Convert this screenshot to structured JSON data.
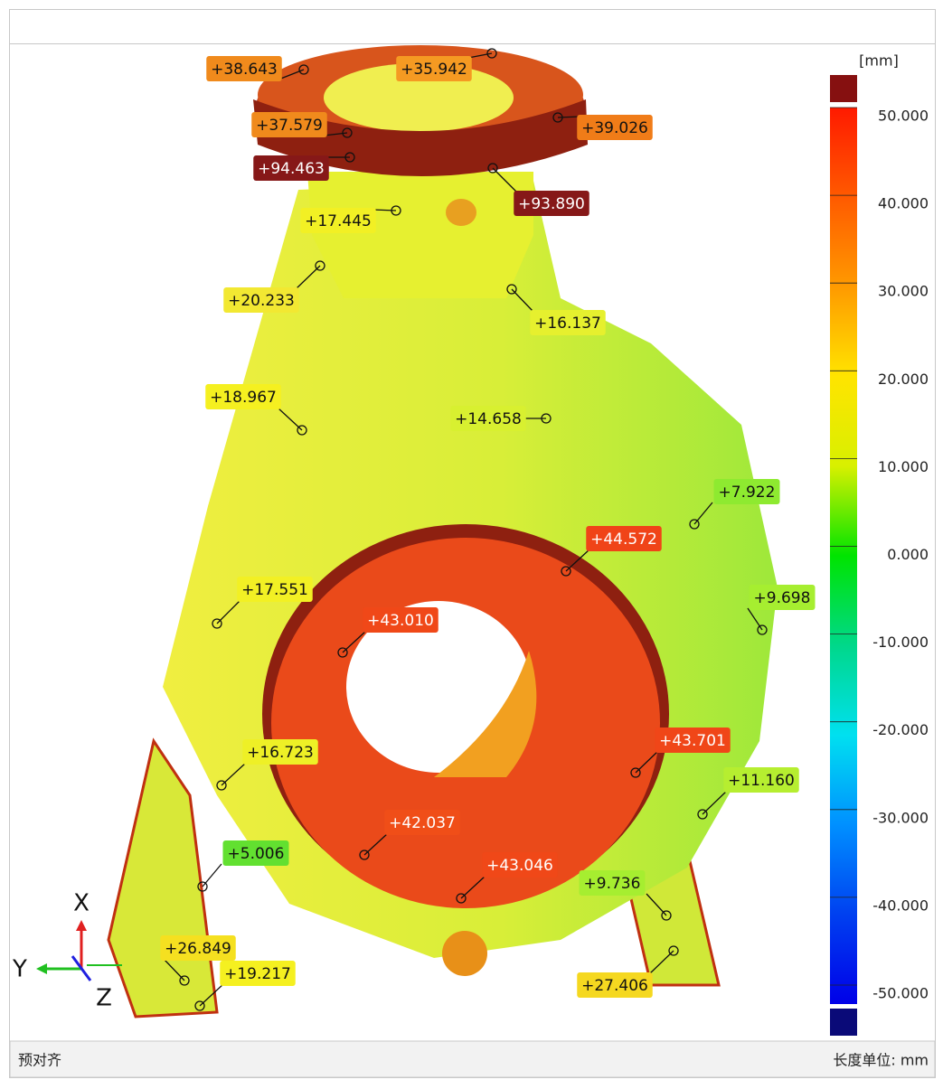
{
  "viewer": {
    "status_left": "预对齐",
    "status_right": "长度单位: mm",
    "colorbar": {
      "unit": "[mm]",
      "ticks": [
        "50.000",
        "40.000",
        "30.000",
        "20.000",
        "10.000",
        "0.000",
        "-10.000",
        "-20.000",
        "-30.000",
        "-40.000",
        "-50.000"
      ]
    },
    "axes": {
      "x": "X",
      "y": "Y",
      "z": "Z"
    },
    "callouts": [
      {
        "label": "+38.643",
        "color": "#f08a1c"
      },
      {
        "label": "+35.942",
        "color": "#f59a22"
      },
      {
        "label": "+37.579",
        "color": "#f08a1c"
      },
      {
        "label": "+39.026",
        "color": "#f07c18"
      },
      {
        "label": "+94.463",
        "color": "#861818"
      },
      {
        "label": "+93.890",
        "color": "#861818"
      },
      {
        "label": "+17.445",
        "color": "#f2f024"
      },
      {
        "label": "+20.233",
        "color": "#f2e832"
      },
      {
        "label": "+16.137",
        "color": "#e6f02e"
      },
      {
        "label": "+18.967",
        "color": "#f5f020"
      },
      {
        "label": "+14.658",
        "color": "#d8f030"
      },
      {
        "label": "+7.922",
        "color": "#8eea30"
      },
      {
        "label": "+44.572",
        "color": "#f04418"
      },
      {
        "label": "+17.551",
        "color": "#f2f024"
      },
      {
        "label": "+9.698",
        "color": "#a6ee30"
      },
      {
        "label": "+43.010",
        "color": "#f04818"
      },
      {
        "label": "+43.701",
        "color": "#f04618"
      },
      {
        "label": "+16.723",
        "color": "#eef026"
      },
      {
        "label": "+11.160",
        "color": "#b6ee30"
      },
      {
        "label": "+42.037",
        "color": "#f04e18"
      },
      {
        "label": "+43.046",
        "color": "#f04818"
      },
      {
        "label": "+5.006",
        "color": "#62e030"
      },
      {
        "label": "+9.736",
        "color": "#a6ee30"
      },
      {
        "label": "+26.849",
        "color": "#f5e020"
      },
      {
        "label": "+19.217",
        "color": "#f5f020"
      },
      {
        "label": "+27.406",
        "color": "#f5d820"
      }
    ]
  }
}
